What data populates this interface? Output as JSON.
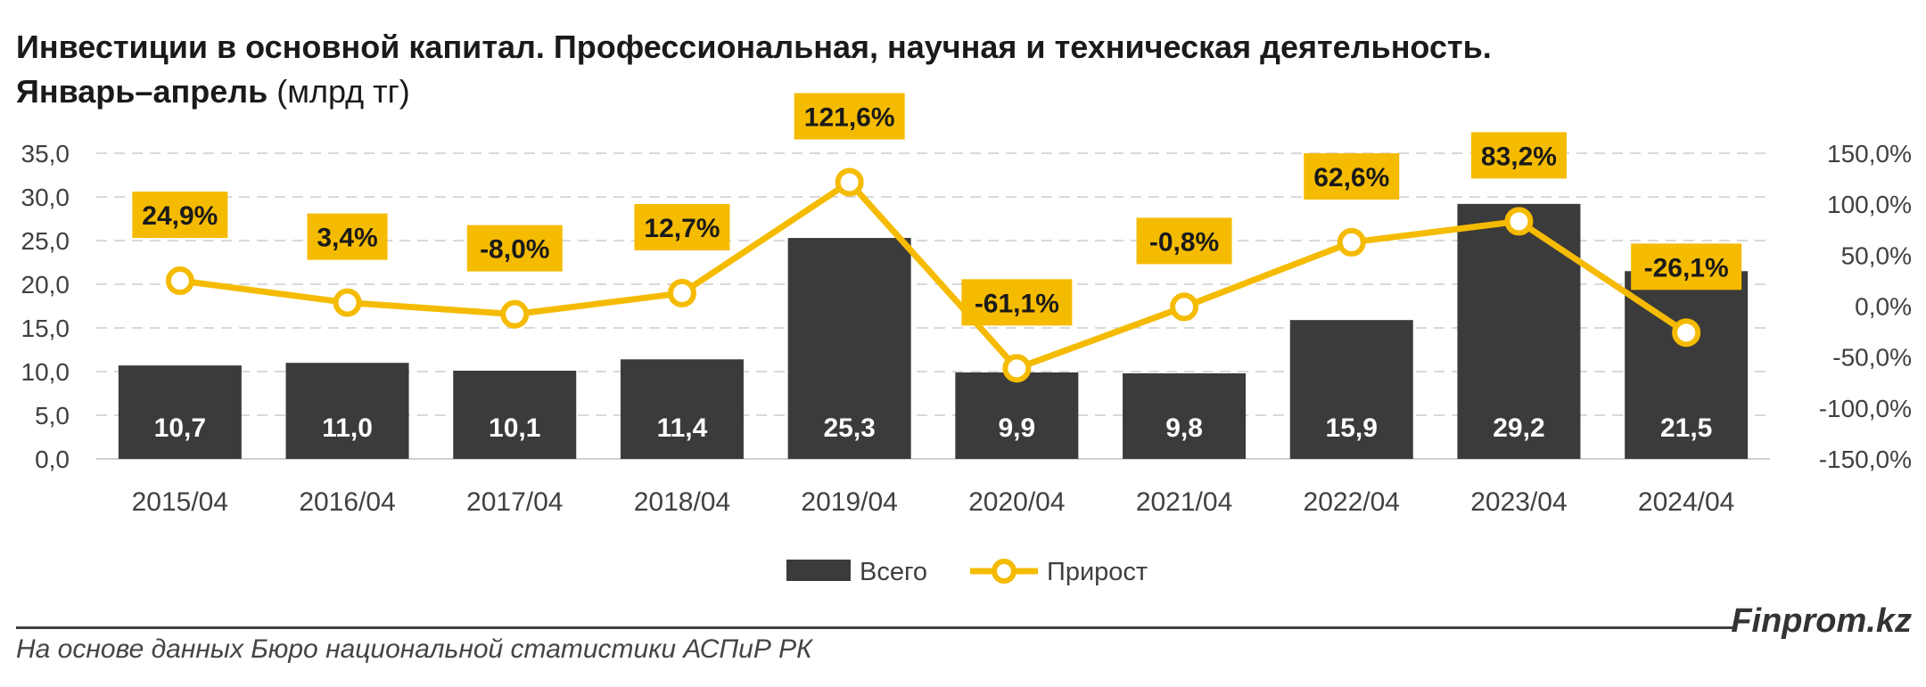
{
  "title": {
    "line1": "Инвестиции в основной капитал. Профессиональная, научная и техническая деятельность.",
    "line2_bold": "Январь–апрель",
    "line2_normal": " (млрд тг)"
  },
  "colors": {
    "bar": "#3b3b3b",
    "line": "#f5bb00",
    "label_box": "#f5bb00",
    "grid": "#d9d9d9"
  },
  "chart_data": {
    "type": "bar",
    "categories": [
      "2015/04",
      "2016/04",
      "2017/04",
      "2018/04",
      "2019/04",
      "2020/04",
      "2021/04",
      "2022/04",
      "2023/04",
      "2024/04"
    ],
    "series": [
      {
        "name": "Всего",
        "type": "bar",
        "axis": "left",
        "values": [
          10.7,
          11.0,
          10.1,
          11.4,
          25.3,
          9.9,
          9.8,
          15.9,
          29.2,
          21.5
        ],
        "labels": [
          "10,7",
          "11,0",
          "10,1",
          "11,4",
          "25,3",
          "9,9",
          "9,8",
          "15,9",
          "29,2",
          "21,5"
        ]
      },
      {
        "name": "Прирост",
        "type": "line",
        "axis": "right",
        "values": [
          24.9,
          3.4,
          -8.0,
          12.7,
          121.6,
          -61.1,
          -0.8,
          62.6,
          83.2,
          -26.1
        ],
        "labels": [
          "24,9%",
          "3,4%",
          "-8,0%",
          "12,7%",
          "121,6%",
          "-61,1%",
          "-0,8%",
          "62,6%",
          "83,2%",
          "-26,1%"
        ]
      }
    ],
    "y_left": {
      "min": 0,
      "max": 35,
      "ticks": [
        "0,0",
        "5,0",
        "10,0",
        "15,0",
        "20,0",
        "25,0",
        "30,0",
        "35,0"
      ]
    },
    "y_right": {
      "min": -150,
      "max": 150,
      "ticks": [
        "-150,0%",
        "-100,0%",
        "-50,0%",
        "0,0%",
        "50,0%",
        "100,0%",
        "150,0%"
      ]
    },
    "grid": true,
    "legend": {
      "position": "bottom",
      "items": [
        "Всего",
        "Прирост"
      ]
    }
  },
  "footer": {
    "brand": "Finprom.kz",
    "source": "На основе данных Бюро национальной статистики АСПиР РК"
  }
}
